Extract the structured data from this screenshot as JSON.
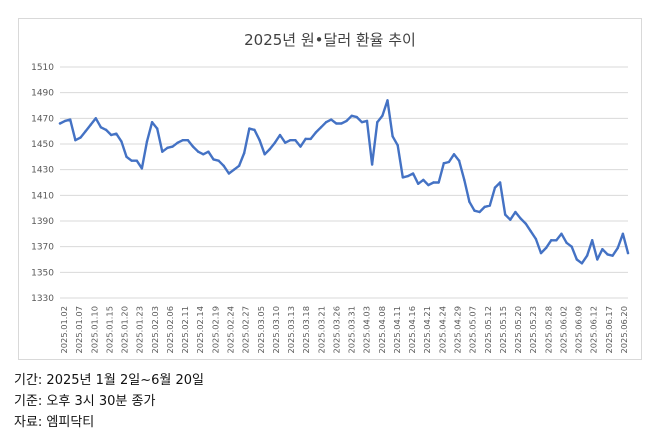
{
  "chart_data": {
    "type": "line",
    "title": "2025년 원•달러 환율 추이",
    "xlabel": "",
    "ylabel": "",
    "ylim": [
      1330,
      1510
    ],
    "yticks": [
      1330,
      1350,
      1370,
      1390,
      1410,
      1430,
      1450,
      1470,
      1490,
      1510
    ],
    "grid": true,
    "legend": "none",
    "line_color": "#4472C4",
    "x_tick_labels": [
      "2025.01.02",
      "2025.01.07",
      "2025.01.10",
      "2025.01.15",
      "2025.01.20",
      "2025.01.23",
      "2025.02.03",
      "2025.02.06",
      "2025.02.11",
      "2025.02.14",
      "2025.02.19",
      "2025.02.24",
      "2025.02.27",
      "2025.03.05",
      "2025.03.10",
      "2025.03.13",
      "2025.03.18",
      "2025.03.21",
      "2025.03.26",
      "2025.03.31",
      "2025.04.03",
      "2025.04.08",
      "2025.04.11",
      "2025.04.16",
      "2025.04.21",
      "2025.04.24",
      "2025.04.29",
      "2025.05.07",
      "2025.05.12",
      "2025.05.15",
      "2025.05.20",
      "2025.05.23",
      "2025.05.28",
      "2025.06.02",
      "2025.06.09",
      "2025.06.12",
      "2025.06.17",
      "2025.06.20"
    ],
    "series": [
      {
        "values": [
          1466,
          1468,
          1469,
          1453,
          1455,
          1460,
          1465,
          1470,
          1463,
          1461,
          1457,
          1458,
          1452,
          1440,
          1437,
          1437,
          1431,
          1452,
          1467,
          1462,
          1444,
          1447,
          1448,
          1451,
          1453,
          1453,
          1448,
          1444,
          1442,
          1444,
          1438,
          1437,
          1433,
          1427,
          1430,
          1433,
          1443,
          1462,
          1461,
          1453,
          1442,
          1446,
          1451,
          1457,
          1451,
          1453,
          1453,
          1448,
          1454,
          1454,
          1459,
          1463,
          1467,
          1469,
          1466,
          1466,
          1468,
          1472,
          1471,
          1467,
          1468,
          1434,
          1467,
          1472,
          1484,
          1456,
          1449,
          1424,
          1425,
          1427,
          1419,
          1422,
          1418,
          1420,
          1420,
          1435,
          1436,
          1442,
          1437,
          1422,
          1405,
          1398,
          1397,
          1401,
          1402,
          1416,
          1420,
          1395,
          1391,
          1397,
          1392,
          1388,
          1382,
          1376,
          1365,
          1369,
          1375,
          1375,
          1380,
          1373,
          1370,
          1360,
          1357,
          1363,
          1375,
          1360,
          1368,
          1364,
          1363,
          1369,
          1380,
          1365
        ]
      }
    ]
  },
  "footer": {
    "period": "기간: 2025년 1월 2일~6월 20일",
    "basis": "기준: 오후 3시 30분 종가",
    "source": "자료: 엠피닥티"
  }
}
